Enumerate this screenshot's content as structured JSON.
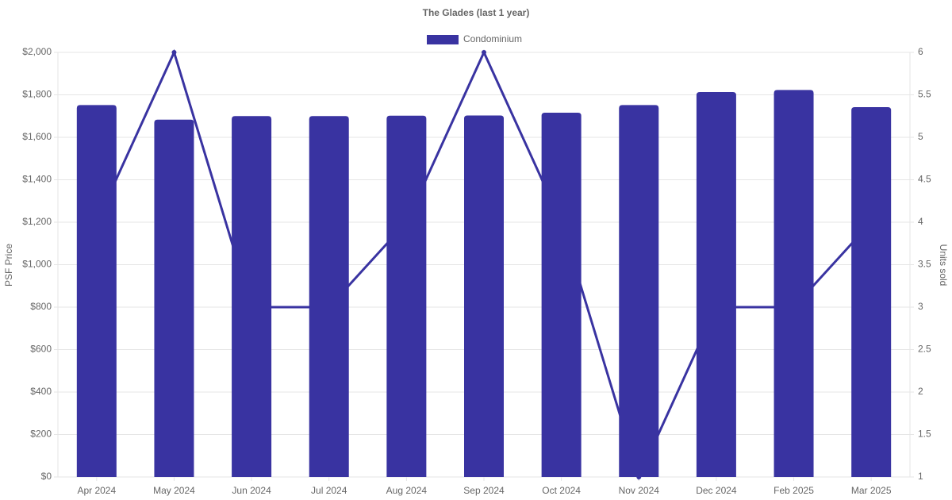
{
  "chart_data": {
    "type": "bar",
    "title": "The Glades (last 1 year)",
    "y_label": "PSF Price",
    "y2_label": "Units sold",
    "categories": [
      "Apr 2024",
      "May 2024",
      "Jun 2024",
      "Jul 2024",
      "Aug 2024",
      "Sep 2024",
      "Oct 2024",
      "Nov 2024",
      "Dec 2024",
      "Feb 2025",
      "Mar 2025"
    ],
    "series": [
      {
        "name": "Condominium",
        "type": "bar",
        "color": "#3933a1",
        "values": [
          1752,
          1683,
          1700,
          1700,
          1702,
          1703,
          1716,
          1752,
          1813,
          1823,
          1742
        ]
      },
      {
        "type": "line",
        "axis": "y2",
        "color": "#3933a1",
        "values": [
          4,
          6,
          3,
          3,
          4,
          6,
          4,
          1,
          3,
          3,
          4
        ]
      }
    ],
    "ylim": [
      0,
      2000
    ],
    "yticks": [
      {
        "value": 0,
        "label": "$0"
      },
      {
        "value": 200,
        "label": "$200"
      },
      {
        "value": 400,
        "label": "$400"
      },
      {
        "value": 600,
        "label": "$600"
      },
      {
        "value": 800,
        "label": "$800"
      },
      {
        "value": 1000,
        "label": "$1,000"
      },
      {
        "value": 1200,
        "label": "$1,200"
      },
      {
        "value": 1400,
        "label": "$1,400"
      },
      {
        "value": 1600,
        "label": "$1,600"
      },
      {
        "value": 1800,
        "label": "$1,800"
      },
      {
        "value": 2000,
        "label": "$2,000"
      }
    ],
    "y2lim": [
      1,
      6
    ],
    "y2ticks": [
      1,
      1.5,
      2,
      2.5,
      3,
      3.5,
      4,
      4.5,
      5,
      5.5,
      6
    ],
    "grid": true,
    "legend": "top"
  }
}
